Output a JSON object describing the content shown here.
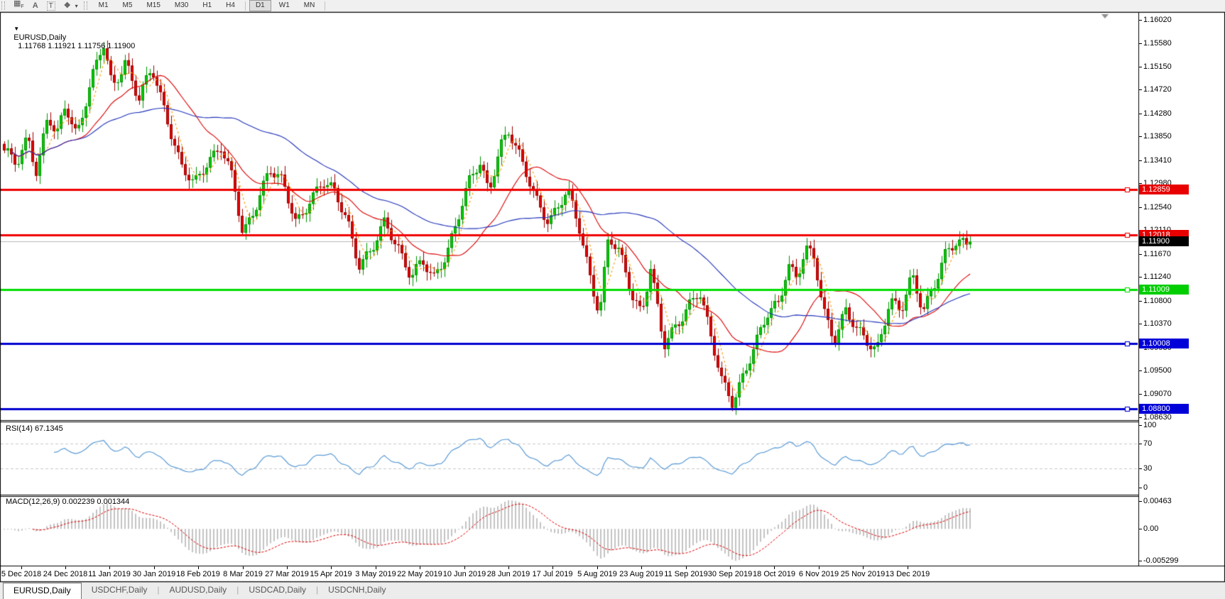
{
  "toolbar": {
    "tools": [
      {
        "name": "grid-f-icon",
        "glyph": "▦",
        "sub": "F"
      },
      {
        "name": "arrow-a-tool-icon",
        "glyph": "A",
        "style": "bold"
      },
      {
        "name": "text-tool-icon",
        "glyph": "T",
        "style": "boxed"
      },
      {
        "name": "styles-tool-icon",
        "glyph": "❖",
        "style": "bold"
      },
      {
        "name": "styles-dropdown-caret-icon",
        "glyph": "▾",
        "style": "small"
      }
    ],
    "timeframes": [
      "M1",
      "M5",
      "M15",
      "M30",
      "H1",
      "H4",
      "D1",
      "W1",
      "MN"
    ],
    "active_timeframe": "D1"
  },
  "chart_header": {
    "collapse_arrow": "▼",
    "symbol": "EURUSD,Daily",
    "values": "1.11768 1.11921 1.11756 1.11900"
  },
  "chart_data": {
    "type": "candlestick",
    "symbol": "EURUSD",
    "timeframe": "Daily",
    "current_bar": {
      "open": "1.11768",
      "high": "1.11921",
      "low": "1.11756",
      "close": "1.11900"
    },
    "price_axis": {
      "ticks": [
        "1.16020",
        "1.15580",
        "1.15150",
        "1.14720",
        "1.14280",
        "1.13850",
        "1.13410",
        "1.12980",
        "1.12540",
        "1.12110",
        "1.11670",
        "1.11240",
        "1.10800",
        "1.10370",
        "1.09930",
        "1.09500",
        "1.09070",
        "1.08630"
      ],
      "highlights": [
        {
          "text": "1.12859",
          "value": 1.12859,
          "bg": "#E80000",
          "fg": "#FFFFFF"
        },
        {
          "text": "1.12018",
          "value": 1.12018,
          "bg": "#E80000",
          "fg": "#FFFFFF"
        },
        {
          "text": "1.11900",
          "value": 1.119,
          "bg": "#000000",
          "fg": "#FFFFFF"
        },
        {
          "text": "1.11009",
          "value": 1.11009,
          "bg": "#00CE00",
          "fg": "#FFFFFF"
        },
        {
          "text": "1.10008",
          "value": 1.10008,
          "bg": "#0000D8",
          "fg": "#FFFFFF"
        },
        {
          "text": "1.08800",
          "value": 1.088,
          "bg": "#0000D8",
          "fg": "#FFFFFF"
        }
      ]
    },
    "x_axis": {
      "date_labels": [
        "5 Dec 2018",
        "24 Dec 2018",
        "11 Jan 2019",
        "30 Jan 2019",
        "18 Feb 2019",
        "8 Mar 2019",
        "27 Mar 2019",
        "15 Apr 2019",
        "3 May 2019",
        "22 May 2019",
        "10 Jun 2019",
        "28 Jun 2019",
        "17 Jul 2019",
        "5 Aug 2019",
        "23 Aug 2019",
        "11 Sep 2019",
        "30 Sep 2019",
        "18 Oct 2019",
        "6 Nov 2019",
        "25 Nov 2019",
        "13 Dec 2019"
      ]
    },
    "horizontal_lines": [
      {
        "price": 1.12859,
        "color": "#F00000",
        "width": 3
      },
      {
        "price": 1.12018,
        "color": "#F00000",
        "width": 3
      },
      {
        "price": 1.11009,
        "color": "#00DD00",
        "width": 3
      },
      {
        "price": 1.10008,
        "color": "#0000D0",
        "width": 3
      },
      {
        "price": 1.088,
        "color": "#0000D0",
        "width": 3
      }
    ],
    "current_price_line": {
      "price": 1.119,
      "color": "#B8B8B8",
      "width": 1
    },
    "candle_colors": {
      "up_fill": "#00CC00",
      "up_border": "#009300",
      "down_fill": "#E00000",
      "down_border": "#9E0000"
    },
    "moving_averages": [
      {
        "period": 5,
        "color": "#FF9900",
        "style": "dashed"
      },
      {
        "period": 21,
        "color": "#DD0000",
        "style": "solid"
      },
      {
        "period": 55,
        "color": "#2233BB",
        "style": "solid"
      }
    ],
    "price_path_anchors": [
      [
        -0.4,
        1.1355
      ],
      [
        -0.1,
        1.134
      ],
      [
        0.15,
        1.139
      ],
      [
        0.35,
        1.1315
      ],
      [
        0.6,
        1.142
      ],
      [
        0.8,
        1.1385
      ],
      [
        1.0,
        1.145
      ],
      [
        1.25,
        1.139
      ],
      [
        1.6,
        1.149
      ],
      [
        1.85,
        1.1558
      ],
      [
        2.05,
        1.148
      ],
      [
        2.35,
        1.1528
      ],
      [
        2.65,
        1.145
      ],
      [
        2.95,
        1.1512
      ],
      [
        3.25,
        1.1435
      ],
      [
        3.6,
        1.133
      ],
      [
        3.9,
        1.1292
      ],
      [
        4.2,
        1.134
      ],
      [
        4.5,
        1.1372
      ],
      [
        4.78,
        1.1302
      ],
      [
        5.0,
        1.1196
      ],
      [
        5.3,
        1.1262
      ],
      [
        5.6,
        1.133
      ],
      [
        5.9,
        1.1296
      ],
      [
        6.2,
        1.1222
      ],
      [
        6.5,
        1.127
      ],
      [
        6.8,
        1.1302
      ],
      [
        7.05,
        1.128
      ],
      [
        7.35,
        1.1232
      ],
      [
        7.62,
        1.1152
      ],
      [
        7.9,
        1.1172
      ],
      [
        8.2,
        1.1222
      ],
      [
        8.5,
        1.1182
      ],
      [
        8.8,
        1.113
      ],
      [
        9.05,
        1.1152
      ],
      [
        9.3,
        1.1116
      ],
      [
        9.6,
        1.1172
      ],
      [
        9.9,
        1.1252
      ],
      [
        10.12,
        1.1302
      ],
      [
        10.35,
        1.1332
      ],
      [
        10.55,
        1.1282
      ],
      [
        10.8,
        1.1372
      ],
      [
        11.0,
        1.1398
      ],
      [
        11.3,
        1.1332
      ],
      [
        11.6,
        1.1272
      ],
      [
        11.9,
        1.1232
      ],
      [
        12.12,
        1.1256
      ],
      [
        12.32,
        1.1282
      ],
      [
        12.6,
        1.1212
      ],
      [
        12.88,
        1.1112
      ],
      [
        13.05,
        1.1062
      ],
      [
        13.25,
        1.1198
      ],
      [
        13.5,
        1.1166
      ],
      [
        13.78,
        1.1092
      ],
      [
        14.0,
        1.1062
      ],
      [
        14.2,
        1.1146
      ],
      [
        14.5,
        1.0992
      ],
      [
        14.78,
        1.1032
      ],
      [
        15.05,
        1.1076
      ],
      [
        15.3,
        1.1102
      ],
      [
        15.55,
        1.1012
      ],
      [
        15.8,
        1.0932
      ],
      [
        16.05,
        1.0896
      ],
      [
        16.3,
        1.0946
      ],
      [
        16.6,
        1.1002
      ],
      [
        16.85,
        1.1056
      ],
      [
        17.1,
        1.1082
      ],
      [
        17.3,
        1.1152
      ],
      [
        17.5,
        1.1122
      ],
      [
        17.7,
        1.1172
      ],
      [
        17.9,
        1.1156
      ],
      [
        18.1,
        1.1066
      ],
      [
        18.35,
        1.1012
      ],
      [
        18.6,
        1.1062
      ],
      [
        18.85,
        1.1022
      ],
      [
        19.05,
        1.1008
      ],
      [
        19.3,
        1.0992
      ],
      [
        19.6,
        1.1082
      ],
      [
        19.85,
        1.1056
      ],
      [
        20.1,
        1.1126
      ],
      [
        20.35,
        1.1068
      ],
      [
        20.6,
        1.1112
      ],
      [
        20.85,
        1.1162
      ],
      [
        21.1,
        1.1186
      ],
      [
        21.45,
        1.119
      ]
    ],
    "indicators": [
      {
        "name": "RSI",
        "params": "14",
        "display": "RSI(14) 67.1345",
        "value": 67.1345,
        "axis_ticks": [
          "100",
          "70",
          "30",
          "0"
        ],
        "levels": [
          70,
          30
        ],
        "color": "#5B9BD5"
      },
      {
        "name": "MACD",
        "params": "12,26,9",
        "display": "MACD(12,26,9) 0.002239 0.001344",
        "values": [
          0.002239,
          0.001344
        ],
        "axis_ticks": [
          "0.00463",
          "0.00",
          "-0.005299"
        ],
        "histogram_color": "#C4C4C4",
        "signal_color": "#E00000"
      }
    ]
  },
  "tabs": {
    "items": [
      "EURUSD,Daily",
      "USDCHF,Daily",
      "AUDUSD,Daily",
      "USDCAD,Daily",
      "USDCNH,Daily"
    ],
    "active": "EURUSD,Daily"
  }
}
